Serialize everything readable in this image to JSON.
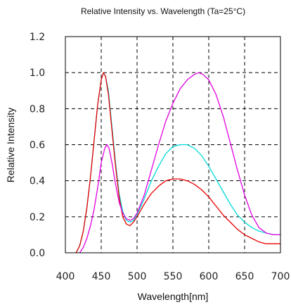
{
  "chart_data": {
    "type": "line",
    "title": "Relative Intensity vs. Wavelength (Ta=25°C)",
    "xlabel": "Wavelength[nm]",
    "ylabel": "Relative Intensity",
    "xlim": [
      400,
      700
    ],
    "ylim": [
      0.0,
      1.2
    ],
    "x_ticks": [
      400,
      450,
      500,
      550,
      600,
      650,
      700
    ],
    "x_tick_labels": [
      "400",
      "450",
      "500",
      "550",
      "600",
      "650",
      "700"
    ],
    "y_ticks": [
      0.0,
      0.2,
      0.4,
      0.6,
      0.8,
      1.0,
      1.2
    ],
    "y_tick_labels": [
      "0.0",
      "0.2",
      "0.4",
      "0.6",
      "0.8",
      "1.0",
      "1.2"
    ],
    "grid": true,
    "grid_style": "dashed",
    "series": [
      {
        "color": "#00d8d8",
        "points": [
          [
            415,
            0.0
          ],
          [
            420,
            0.04
          ],
          [
            425,
            0.12
          ],
          [
            430,
            0.25
          ],
          [
            435,
            0.42
          ],
          [
            440,
            0.62
          ],
          [
            445,
            0.82
          ],
          [
            450,
            0.96
          ],
          [
            453,
            1.0
          ],
          [
            456,
            0.98
          ],
          [
            460,
            0.9
          ],
          [
            465,
            0.7
          ],
          [
            470,
            0.5
          ],
          [
            475,
            0.33
          ],
          [
            480,
            0.23
          ],
          [
            485,
            0.18
          ],
          [
            490,
            0.17
          ],
          [
            495,
            0.18
          ],
          [
            500,
            0.21
          ],
          [
            510,
            0.3
          ],
          [
            520,
            0.4
          ],
          [
            530,
            0.48
          ],
          [
            540,
            0.55
          ],
          [
            550,
            0.59
          ],
          [
            560,
            0.6
          ],
          [
            570,
            0.6
          ],
          [
            580,
            0.58
          ],
          [
            590,
            0.54
          ],
          [
            600,
            0.48
          ],
          [
            610,
            0.41
          ],
          [
            620,
            0.34
          ],
          [
            630,
            0.27
          ],
          [
            640,
            0.21
          ],
          [
            650,
            0.17
          ],
          [
            660,
            0.14
          ],
          [
            670,
            0.12
          ],
          [
            680,
            0.11
          ],
          [
            690,
            0.1
          ],
          [
            700,
            0.1
          ]
        ]
      },
      {
        "color": "#e80000",
        "points": [
          [
            415,
            0.0
          ],
          [
            420,
            0.04
          ],
          [
            425,
            0.12
          ],
          [
            430,
            0.25
          ],
          [
            435,
            0.42
          ],
          [
            440,
            0.62
          ],
          [
            445,
            0.82
          ],
          [
            450,
            0.96
          ],
          [
            453,
            1.0
          ],
          [
            456,
            0.98
          ],
          [
            460,
            0.88
          ],
          [
            465,
            0.68
          ],
          [
            470,
            0.48
          ],
          [
            475,
            0.31
          ],
          [
            480,
            0.2
          ],
          [
            485,
            0.16
          ],
          [
            490,
            0.15
          ],
          [
            495,
            0.17
          ],
          [
            500,
            0.2
          ],
          [
            510,
            0.27
          ],
          [
            520,
            0.33
          ],
          [
            530,
            0.37
          ],
          [
            540,
            0.4
          ],
          [
            550,
            0.41
          ],
          [
            560,
            0.41
          ],
          [
            570,
            0.4
          ],
          [
            580,
            0.38
          ],
          [
            590,
            0.35
          ],
          [
            600,
            0.31
          ],
          [
            610,
            0.26
          ],
          [
            620,
            0.21
          ],
          [
            630,
            0.17
          ],
          [
            640,
            0.13
          ],
          [
            650,
            0.1
          ],
          [
            660,
            0.08
          ],
          [
            670,
            0.06
          ],
          [
            680,
            0.05
          ],
          [
            690,
            0.05
          ],
          [
            700,
            0.05
          ]
        ]
      },
      {
        "color": "#e000e0",
        "points": [
          [
            420,
            0.0
          ],
          [
            425,
            0.03
          ],
          [
            430,
            0.08
          ],
          [
            435,
            0.15
          ],
          [
            440,
            0.24
          ],
          [
            445,
            0.36
          ],
          [
            450,
            0.5
          ],
          [
            455,
            0.58
          ],
          [
            458,
            0.6
          ],
          [
            461,
            0.58
          ],
          [
            465,
            0.5
          ],
          [
            470,
            0.38
          ],
          [
            475,
            0.28
          ],
          [
            480,
            0.22
          ],
          [
            485,
            0.19
          ],
          [
            490,
            0.18
          ],
          [
            495,
            0.19
          ],
          [
            500,
            0.22
          ],
          [
            510,
            0.32
          ],
          [
            520,
            0.46
          ],
          [
            530,
            0.6
          ],
          [
            540,
            0.73
          ],
          [
            550,
            0.83
          ],
          [
            560,
            0.91
          ],
          [
            570,
            0.96
          ],
          [
            580,
            0.99
          ],
          [
            586,
            1.0
          ],
          [
            592,
            0.99
          ],
          [
            600,
            0.96
          ],
          [
            610,
            0.88
          ],
          [
            620,
            0.76
          ],
          [
            630,
            0.61
          ],
          [
            640,
            0.46
          ],
          [
            650,
            0.32
          ],
          [
            660,
            0.21
          ],
          [
            670,
            0.14
          ],
          [
            680,
            0.11
          ],
          [
            690,
            0.1
          ],
          [
            700,
            0.1
          ]
        ]
      }
    ]
  }
}
